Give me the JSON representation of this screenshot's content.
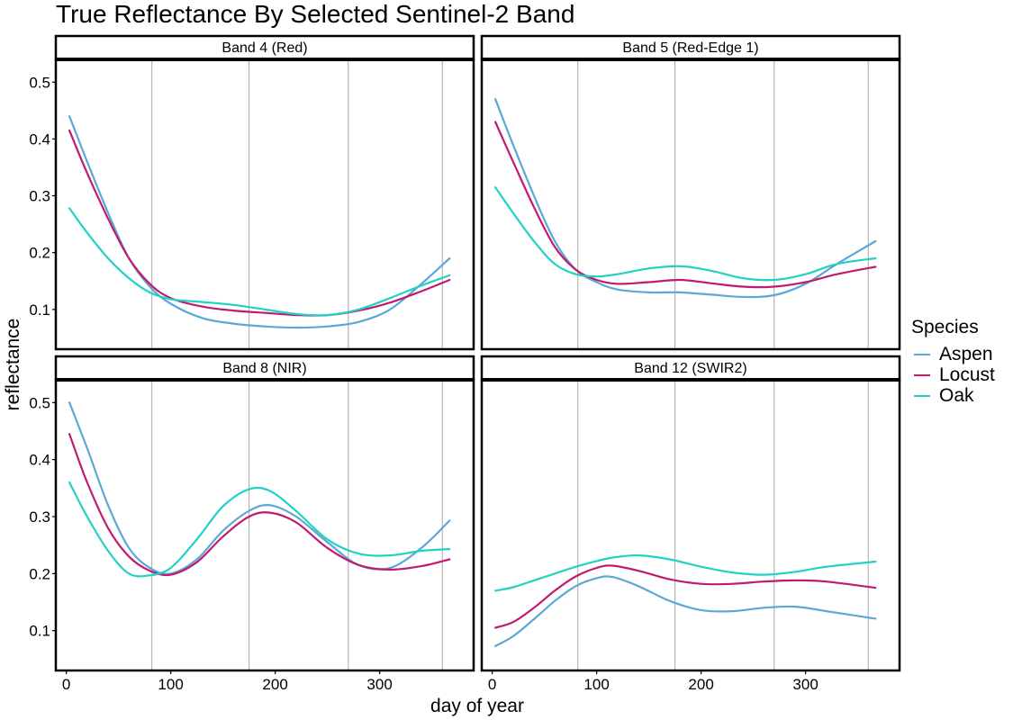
{
  "title": "True Reflectance By Selected Sentinel-2 Band",
  "xlabel": "day of year",
  "ylabel": "reflectance",
  "legend": {
    "title": "Species",
    "position": "right",
    "items": [
      {
        "label": "Aspen",
        "color": "#5aa8d6"
      },
      {
        "label": "Locust",
        "color": "#c01b6e"
      },
      {
        "label": "Oak",
        "color": "#21d2c4"
      }
    ]
  },
  "chart_data": {
    "type": "line",
    "facets": true,
    "xlim": [
      -10,
      390
    ],
    "ylim": [
      0.03,
      0.54
    ],
    "x_ticks": [
      0,
      100,
      200,
      300
    ],
    "y_ticks": [
      0.1,
      0.2,
      0.3,
      0.4,
      0.5
    ],
    "y_tick_labels": [
      "0.1",
      "0.2",
      "0.3",
      "0.4",
      "0.5"
    ],
    "grid": "vertical lines at data dates",
    "panels": [
      {
        "label": "Band 4 (Red)",
        "vlines": [
          82,
          175,
          270,
          360
        ],
        "series": [
          {
            "name": "Aspen",
            "x": [
              3,
              20,
              40,
              60,
              80,
              100,
              130,
              160,
              190,
              220,
              250,
              280,
              310,
              340,
              367
            ],
            "y": [
              0.44,
              0.36,
              0.27,
              0.19,
              0.14,
              0.11,
              0.085,
              0.075,
              0.07,
              0.068,
              0.07,
              0.078,
              0.1,
              0.145,
              0.19
            ]
          },
          {
            "name": "Locust",
            "x": [
              3,
              20,
              40,
              60,
              80,
              100,
              130,
              160,
              190,
              220,
              250,
              280,
              310,
              340,
              367
            ],
            "y": [
              0.415,
              0.34,
              0.26,
              0.19,
              0.145,
              0.12,
              0.105,
              0.098,
              0.094,
              0.09,
              0.09,
              0.098,
              0.112,
              0.132,
              0.152
            ]
          },
          {
            "name": "Oak",
            "x": [
              3,
              20,
              40,
              60,
              80,
              100,
              130,
              160,
              190,
              220,
              250,
              280,
              310,
              340,
              367
            ],
            "y": [
              0.278,
              0.235,
              0.19,
              0.155,
              0.13,
              0.118,
              0.113,
              0.108,
              0.1,
              0.092,
              0.09,
              0.1,
              0.12,
              0.142,
              0.16
            ]
          }
        ]
      },
      {
        "label": "Band 5 (Red-Edge 1)",
        "vlines": [
          82,
          175,
          270,
          360
        ],
        "series": [
          {
            "name": "Aspen",
            "x": [
              3,
              20,
              40,
              60,
              80,
              100,
              120,
              150,
              180,
              210,
              240,
              270,
              300,
              330,
              367
            ],
            "y": [
              0.47,
              0.39,
              0.3,
              0.22,
              0.17,
              0.148,
              0.135,
              0.13,
              0.13,
              0.126,
              0.122,
              0.125,
              0.145,
              0.18,
              0.22
            ]
          },
          {
            "name": "Locust",
            "x": [
              3,
              20,
              40,
              60,
              80,
              100,
              120,
              150,
              180,
              210,
              240,
              270,
              300,
              330,
              367
            ],
            "y": [
              0.43,
              0.36,
              0.28,
              0.21,
              0.17,
              0.152,
              0.145,
              0.148,
              0.152,
              0.146,
              0.14,
              0.14,
              0.148,
              0.162,
              0.175
            ]
          },
          {
            "name": "Oak",
            "x": [
              3,
              20,
              40,
              60,
              80,
              100,
              120,
              150,
              180,
              210,
              240,
              270,
              300,
              330,
              367
            ],
            "y": [
              0.315,
              0.27,
              0.22,
              0.18,
              0.162,
              0.158,
              0.162,
              0.172,
              0.176,
              0.168,
              0.155,
              0.152,
              0.162,
              0.18,
              0.19
            ]
          }
        ]
      },
      {
        "label": "Band 8 (NIR)",
        "vlines": [
          82,
          175,
          270,
          360
        ],
        "series": [
          {
            "name": "Aspen",
            "x": [
              3,
              20,
              40,
              60,
              80,
              100,
              125,
              150,
              175,
              195,
              220,
              250,
              280,
              310,
              340,
              367
            ],
            "y": [
              0.5,
              0.42,
              0.32,
              0.245,
              0.21,
              0.2,
              0.225,
              0.275,
              0.31,
              0.32,
              0.3,
              0.255,
              0.215,
              0.21,
              0.245,
              0.293
            ]
          },
          {
            "name": "Locust",
            "x": [
              3,
              20,
              40,
              60,
              80,
              100,
              125,
              150,
              175,
              195,
              220,
              250,
              280,
              310,
              340,
              367
            ],
            "y": [
              0.445,
              0.36,
              0.28,
              0.23,
              0.205,
              0.198,
              0.22,
              0.265,
              0.3,
              0.307,
              0.29,
              0.245,
              0.215,
              0.207,
              0.213,
              0.225
            ]
          },
          {
            "name": "Oak",
            "x": [
              3,
              20,
              40,
              60,
              80,
              100,
              125,
              150,
              175,
              195,
              220,
              250,
              280,
              310,
              340,
              367
            ],
            "y": [
              0.36,
              0.3,
              0.24,
              0.2,
              0.197,
              0.21,
              0.26,
              0.318,
              0.348,
              0.345,
              0.31,
              0.26,
              0.235,
              0.232,
              0.24,
              0.243
            ]
          }
        ]
      },
      {
        "label": "Band 12 (SWIR2)",
        "vlines": [
          82,
          175,
          270,
          360
        ],
        "series": [
          {
            "name": "Aspen",
            "x": [
              3,
              20,
              40,
              60,
              80,
              100,
              115,
              140,
              170,
              200,
              230,
              260,
              290,
              320,
              367
            ],
            "y": [
              0.073,
              0.09,
              0.12,
              0.152,
              0.178,
              0.192,
              0.194,
              0.178,
              0.152,
              0.136,
              0.134,
              0.14,
              0.142,
              0.134,
              0.121
            ]
          },
          {
            "name": "Locust",
            "x": [
              3,
              20,
              40,
              60,
              80,
              100,
              115,
              140,
              170,
              200,
              230,
              260,
              290,
              320,
              367
            ],
            "y": [
              0.105,
              0.115,
              0.14,
              0.17,
              0.195,
              0.21,
              0.214,
              0.205,
              0.19,
              0.182,
              0.182,
              0.186,
              0.188,
              0.186,
              0.175
            ]
          },
          {
            "name": "Oak",
            "x": [
              3,
              20,
              40,
              60,
              80,
              100,
              115,
              140,
              170,
              200,
              230,
              260,
              290,
              320,
              367
            ],
            "y": [
              0.17,
              0.176,
              0.188,
              0.2,
              0.212,
              0.222,
              0.228,
              0.232,
              0.225,
              0.212,
              0.202,
              0.198,
              0.203,
              0.212,
              0.221
            ]
          }
        ]
      }
    ]
  }
}
